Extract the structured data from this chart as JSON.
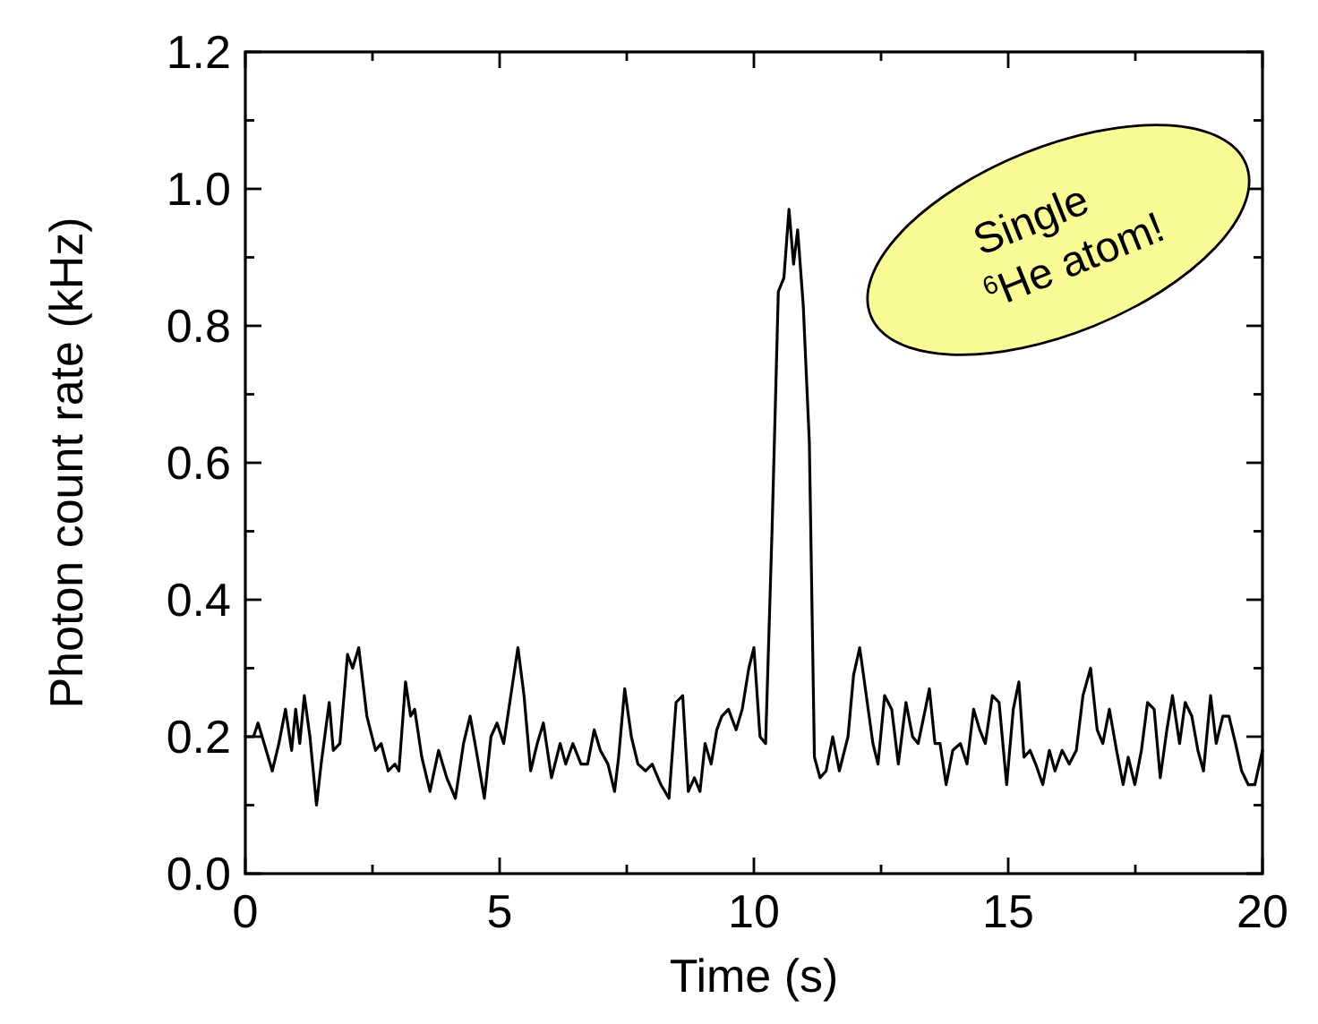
{
  "chart_data": {
    "type": "line",
    "xlabel": "Time (s)",
    "ylabel": "Photon count rate (kHz)",
    "xlim": [
      0,
      20
    ],
    "ylim": [
      0,
      1.2
    ],
    "xticks": [
      0,
      {
        "value": 2.5,
        "label": null
      },
      5,
      {
        "value": 7.5,
        "label": null
      },
      10,
      {
        "value": 12.5,
        "label": null
      },
      15,
      {
        "value": 17.5,
        "label": null
      },
      20
    ],
    "yticks": [
      "0.0",
      {
        "value": 0.1,
        "label": null
      },
      0.2,
      {
        "value": 0.3,
        "label": null
      },
      0.4,
      {
        "value": 0.5,
        "label": null
      },
      0.6,
      {
        "value": 0.7,
        "label": null
      },
      0.8,
      {
        "value": 0.9,
        "label": null
      },
      "1.0",
      {
        "value": 1.1,
        "label": null
      },
      1.2
    ],
    "grid": false,
    "marker": "none",
    "line_style": "solid",
    "annotations": [
      "Single $^{6}$He atom!"
    ],
    "series": [
      {
        "color": "#000000",
        "x": [
          0,
          0.16,
          0.25,
          0.53,
          0.66,
          0.79,
          0.91,
          0.99,
          1.07,
          1.16,
          1.27,
          1.4,
          1.49,
          1.65,
          1.73,
          1.86,
          2.01,
          2.11,
          2.23,
          2.39,
          2.56,
          2.67,
          2.81,
          2.94,
          3.02,
          3.15,
          3.25,
          3.33,
          3.47,
          3.63,
          3.8,
          3.96,
          4.13,
          4.29,
          4.42,
          4.54,
          4.7,
          4.83,
          4.95,
          5.08,
          5.2,
          5.36,
          5.48,
          5.61,
          5.74,
          5.86,
          6.02,
          6.19,
          6.3,
          6.44,
          6.6,
          6.73,
          6.86,
          6.98,
          7.13,
          7.26,
          7.34,
          7.46,
          7.59,
          7.72,
          7.87,
          8,
          8.17,
          8.33,
          8.47,
          8.6,
          8.71,
          8.83,
          8.94,
          9.04,
          9.16,
          9.27,
          9.37,
          9.5,
          9.65,
          9.77,
          9.9,
          10,
          10.12,
          10.23,
          10.36,
          10.48,
          10.59,
          10.69,
          10.78,
          10.86,
          10.97,
          11.09,
          11.19,
          11.3,
          11.42,
          11.55,
          11.68,
          11.85,
          11.96,
          12.08,
          12.21,
          12.34,
          12.44,
          12.57,
          12.71,
          12.84,
          12.99,
          13.12,
          13.23,
          13.37,
          13.45,
          13.56,
          13.66,
          13.78,
          13.91,
          14.06,
          14.19,
          14.32,
          14.44,
          14.55,
          14.69,
          14.82,
          14.97,
          15.1,
          15.21,
          15.31,
          15.43,
          15.54,
          15.68,
          15.81,
          15.92,
          16.06,
          16.2,
          16.34,
          16.47,
          16.62,
          16.75,
          16.86,
          16.99,
          17.13,
          17.26,
          17.36,
          17.49,
          17.62,
          17.74,
          17.87,
          17.99,
          18.12,
          18.23,
          18.37,
          18.48,
          18.61,
          18.73,
          18.84,
          18.98,
          19.09,
          19.22,
          19.34,
          19.47,
          19.59,
          19.72,
          19.85,
          20
        ],
        "values": [
          0.2,
          0.2,
          0.22,
          0.15,
          0.19,
          0.24,
          0.18,
          0.24,
          0.19,
          0.26,
          0.2,
          0.1,
          0.16,
          0.25,
          0.18,
          0.19,
          0.32,
          0.3,
          0.33,
          0.23,
          0.18,
          0.19,
          0.15,
          0.16,
          0.15,
          0.28,
          0.23,
          0.24,
          0.17,
          0.12,
          0.18,
          0.14,
          0.11,
          0.19,
          0.23,
          0.18,
          0.11,
          0.2,
          0.22,
          0.19,
          0.25,
          0.33,
          0.26,
          0.15,
          0.19,
          0.22,
          0.14,
          0.19,
          0.16,
          0.19,
          0.16,
          0.16,
          0.21,
          0.18,
          0.16,
          0.12,
          0.17,
          0.27,
          0.2,
          0.16,
          0.15,
          0.16,
          0.13,
          0.11,
          0.25,
          0.26,
          0.12,
          0.14,
          0.12,
          0.19,
          0.16,
          0.21,
          0.23,
          0.24,
          0.21,
          0.24,
          0.3,
          0.33,
          0.2,
          0.19,
          0.51,
          0.85,
          0.87,
          0.97,
          0.89,
          0.94,
          0.83,
          0.63,
          0.17,
          0.14,
          0.15,
          0.2,
          0.15,
          0.2,
          0.29,
          0.33,
          0.26,
          0.19,
          0.16,
          0.26,
          0.24,
          0.16,
          0.25,
          0.2,
          0.19,
          0.24,
          0.27,
          0.19,
          0.19,
          0.13,
          0.18,
          0.19,
          0.16,
          0.24,
          0.21,
          0.19,
          0.26,
          0.25,
          0.13,
          0.24,
          0.28,
          0.17,
          0.18,
          0.16,
          0.13,
          0.18,
          0.15,
          0.18,
          0.16,
          0.18,
          0.26,
          0.3,
          0.21,
          0.19,
          0.24,
          0.18,
          0.13,
          0.17,
          0.13,
          0.18,
          0.25,
          0.24,
          0.14,
          0.21,
          0.26,
          0.19,
          0.25,
          0.23,
          0.18,
          0.15,
          0.26,
          0.19,
          0.23,
          0.23,
          0.19,
          0.15,
          0.13,
          0.13,
          0.18
        ]
      }
    ]
  }
}
